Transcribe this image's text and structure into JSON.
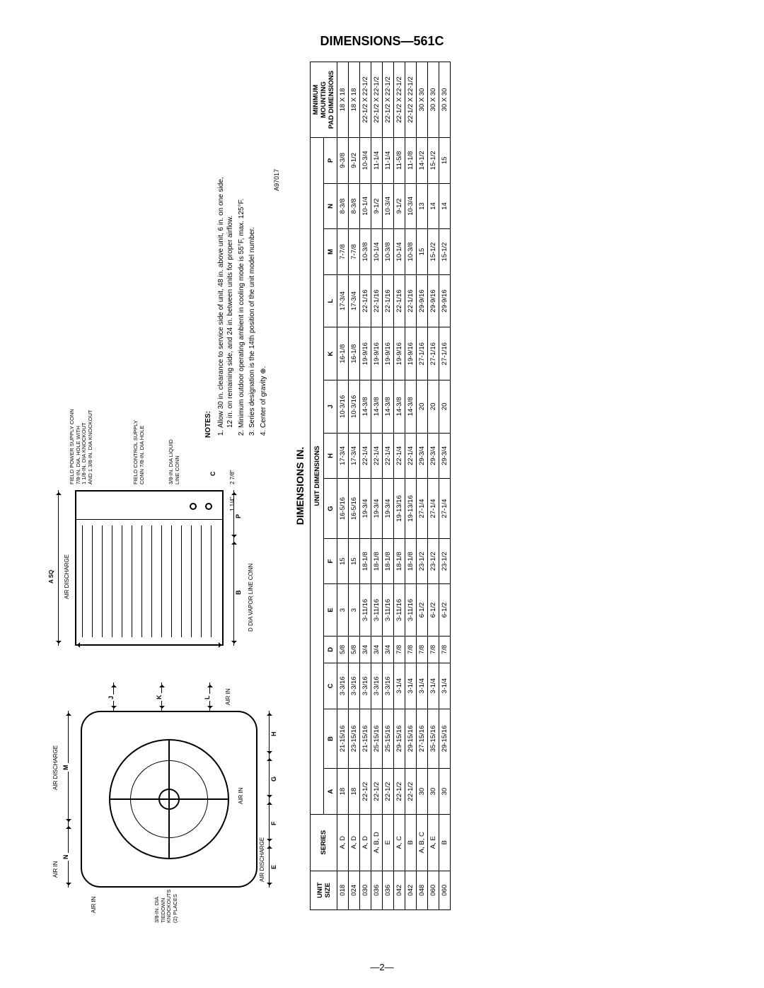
{
  "title": "DIMENSIONS—561C",
  "page_footer": "—2—",
  "drawing_ref": "A97017",
  "front_view": {
    "top_labels": [
      "AIR IN",
      "AIR DISCHARGE"
    ],
    "dim_top": [
      "N",
      "M"
    ],
    "left_label": "AIR IN",
    "tiedown": "3/8-IN. DIA\nTIEDOWN\nKNOCKOUTS\n(2) PLACES",
    "bottom_label": "AIR DISCHARGE",
    "bottom_air": "AIR IN",
    "dim_bottom": [
      "E",
      "F",
      "G",
      "H"
    ],
    "dim_right": [
      "J",
      "K",
      "L"
    ],
    "right_air": "AIR IN"
  },
  "side_view": {
    "a_sq": "A SQ",
    "air_disch": "AIR DISCHARGE",
    "fps": "FIELD POWER SUPPLY CONN\n7/8-IN. DIA. HOLE WITH\n1 1/8-IN. DIA KNOCKOUT\nAND 1 3/8-IN. DIA KNOCKOUT",
    "fcs": "FIELD CONTROL SUPPLY\nCONN  7/8-IN. DIA HOLE",
    "liq": "3/8-IN. DIA LIQUID\nLINE CONN",
    "dim_bottom": [
      "B",
      "P"
    ],
    "c_dim": "C",
    "frac1": "1 1/4\"",
    "frac2": "2 7/8\"",
    "vapor": "D DIA VAPOR LINE CONN"
  },
  "notes_title": "NOTES:",
  "notes": [
    "Allow 30 in. clearance to service side of unit, 48 in. above unit, 6 in. on one side, 12 in. on remaining side, and 24 in. between units for proper airflow.",
    "Minimum outdoor operating ambient in cooling mode is 55°F, max. 125°F.",
    "Series designation is the 14th position of the unit model number.",
    "Center of gravity ⊕."
  ],
  "table_title": "DIMENSIONS IN.",
  "table": {
    "head1": [
      "UNIT\nSIZE",
      "SERIES",
      "UNIT DIMENSIONS",
      "MINIMUM\nMOUNTING\nPAD DIMENSIONS"
    ],
    "head2": [
      "A",
      "B",
      "C",
      "D",
      "E",
      "F",
      "G",
      "H",
      "J",
      "K",
      "L",
      "M",
      "N",
      "P"
    ],
    "rows": [
      [
        "018",
        "A, D",
        "18",
        "21-15/16",
        "3-3/16",
        "5/8",
        "3",
        "15",
        "16-5/16",
        "17-3/4",
        "10-3/16",
        "16-1/8",
        "17-3/4",
        "7-7/8",
        "8-3/8",
        "9-3/8",
        "18 X 18"
      ],
      [
        "024",
        "A, D",
        "18",
        "23-15/16",
        "3-3/16",
        "5/8",
        "3",
        "15",
        "16-5/16",
        "17-3/4",
        "10-3/16",
        "16-1/8",
        "17-3/4",
        "7-7/8",
        "8-3/8",
        "9-1/2",
        "18 X 18"
      ],
      [
        "030",
        "A, D",
        "22-1/2",
        "21-15/16",
        "3-3/16",
        "3/4",
        "3-11/16",
        "18-1/8",
        "19-3/4",
        "22-1/4",
        "14-3/8",
        "19-9/16",
        "22-1/16",
        "10-3/8",
        "10-1/4",
        "10-3/4",
        "22-1/2 X 22-1/2"
      ],
      [
        "036",
        "A, B, D",
        "22-1/2",
        "25-15/16",
        "3-3/16",
        "3/4",
        "3-11/16",
        "18-1/8",
        "19-3/4",
        "22-1/4",
        "14-3/8",
        "19-9/16",
        "22-1/16",
        "10-1/4",
        "9-1/2",
        "11-1/4",
        "22-1/2 X 22-1/2"
      ],
      [
        "036",
        "E",
        "22-1/2",
        "25-15/16",
        "3-3/16",
        "3/4",
        "3-11/16",
        "18-1/8",
        "19-3/4",
        "22-1/4",
        "14-3/8",
        "19-9/16",
        "22-1/16",
        "10-3/8",
        "10-3/4",
        "11-1/4",
        "22-1/2 X 22-1/2"
      ],
      [
        "042",
        "A, C",
        "22-1/2",
        "29-15/16",
        "3-1/4",
        "7/8",
        "3-11/16",
        "18-1/8",
        "19-13/16",
        "22-1/4",
        "14-3/8",
        "19-9/16",
        "22-1/16",
        "10-1/4",
        "9-1/2",
        "11-5/8",
        "22-1/2 X 22-1/2"
      ],
      [
        "042",
        "B",
        "22-1/2",
        "29-15/16",
        "3-1/4",
        "7/8",
        "3-11/16",
        "18-1/8",
        "19-13/16",
        "22-1/4",
        "14-3/8",
        "19-9/16",
        "22-1/16",
        "10-3/8",
        "10-3/4",
        "11-1/8",
        "22-1/2 X 22-1/2"
      ],
      [
        "048",
        "A, B, C",
        "30",
        "27-15/16",
        "3-1/4",
        "7/8",
        "6-1/2",
        "23-1/2",
        "27-1/4",
        "29-3/4",
        "20",
        "27-1/16",
        "29-9/16",
        "15",
        "13",
        "14-1/2",
        "30 X 30"
      ],
      [
        "060",
        "A, E",
        "30",
        "35-15/16",
        "3-1/4",
        "7/8",
        "6-1/2",
        "23-1/2",
        "27-1/4",
        "29-3/4",
        "20",
        "27-1/16",
        "29-9/16",
        "15-1/2",
        "14",
        "15-1/2",
        "30 X 30"
      ],
      [
        "060",
        "B",
        "30",
        "29-15/16",
        "3-1/4",
        "7/8",
        "6-1/2",
        "23-1/2",
        "27-1/4",
        "29-3/4",
        "20",
        "27-1/16",
        "29-9/16",
        "15-1/2",
        "14",
        "15",
        "30 X 30"
      ]
    ]
  }
}
